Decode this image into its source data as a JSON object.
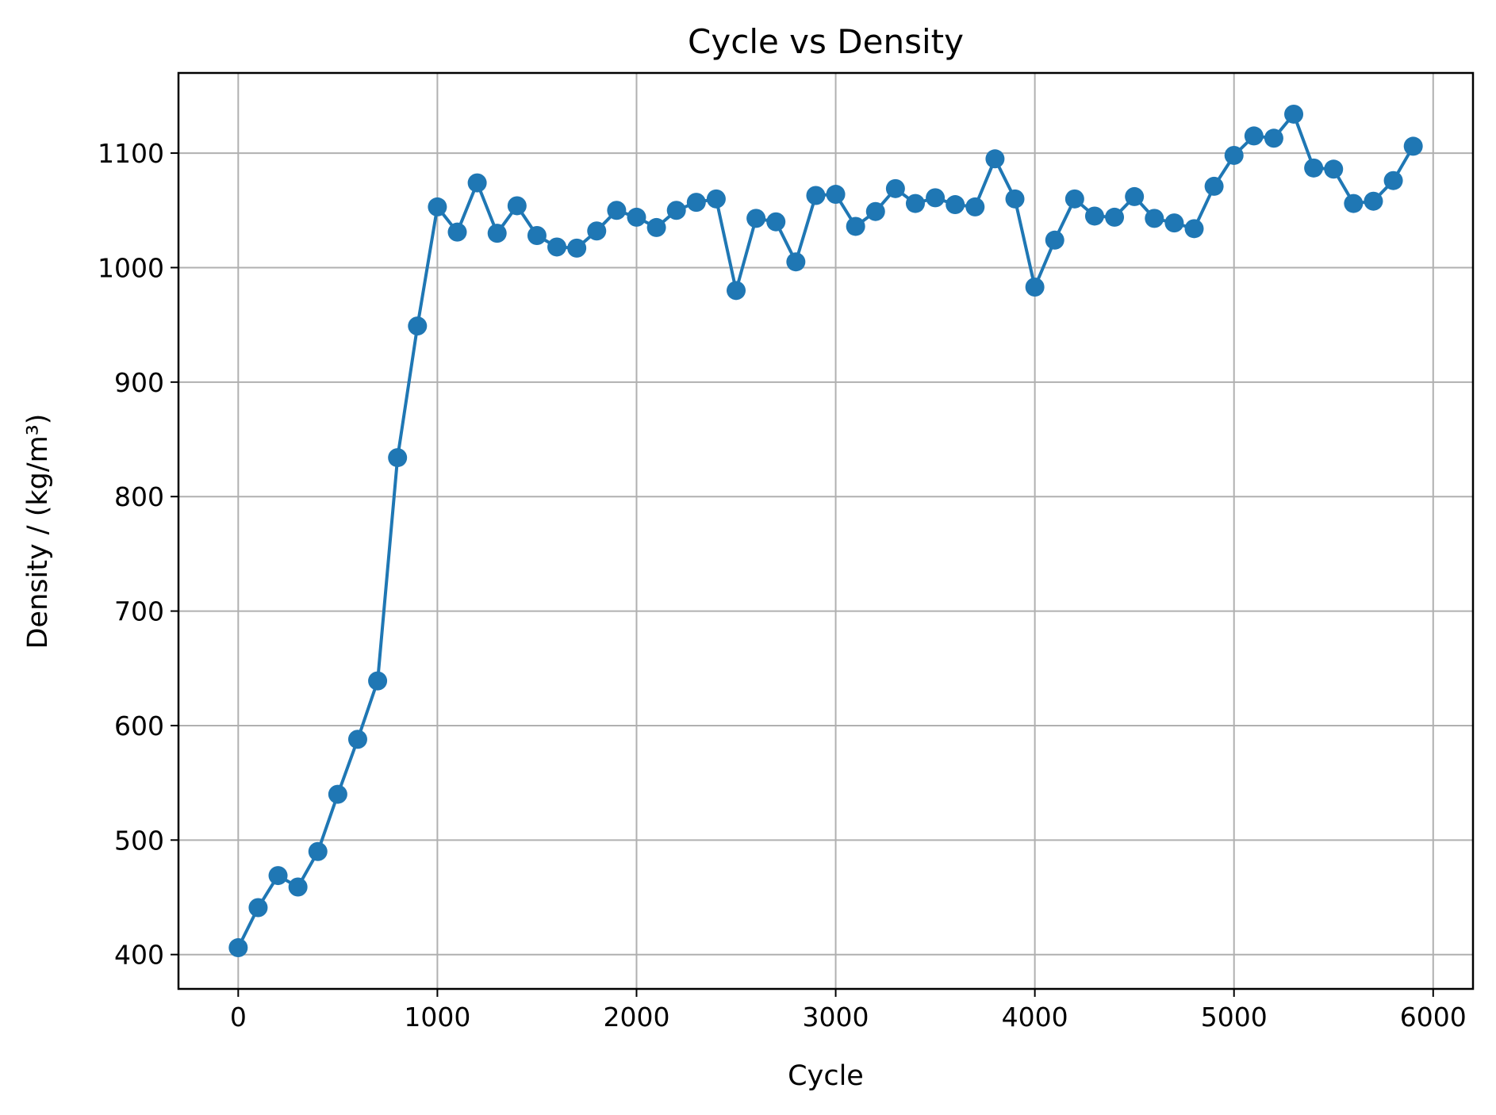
{
  "chart_data": {
    "type": "line",
    "title": "Cycle vs Density",
    "xlabel": "Cycle",
    "ylabel": "Density / (kg/m³)",
    "xlim": [
      -300,
      6200
    ],
    "ylim": [
      370,
      1170
    ],
    "xticks": [
      0,
      1000,
      2000,
      3000,
      4000,
      5000,
      6000
    ],
    "yticks": [
      400,
      500,
      600,
      700,
      800,
      900,
      1000,
      1100
    ],
    "grid": true,
    "markers": true,
    "color": "#1f77b4",
    "series": [
      {
        "x": [
          0,
          100,
          200,
          300,
          400,
          500,
          600,
          700,
          800,
          900,
          1000,
          1100,
          1200,
          1300,
          1400,
          1500,
          1600,
          1700,
          1800,
          1900,
          2000,
          2100,
          2200,
          2300,
          2400,
          2500,
          2600,
          2700,
          2800,
          2900,
          3000,
          3100,
          3200,
          3300,
          3400,
          3500,
          3600,
          3700,
          3800,
          3900,
          4000,
          4100,
          4200,
          4300,
          4400,
          4500,
          4600,
          4700,
          4800,
          4900,
          5000,
          5100,
          5200,
          5300,
          5400,
          5500,
          5600,
          5700,
          5800,
          5900
        ],
        "values": [
          406,
          441,
          469,
          459,
          490,
          540,
          588,
          639,
          834,
          949,
          1053,
          1031,
          1074,
          1030,
          1054,
          1028,
          1018,
          1017,
          1032,
          1050,
          1044,
          1035,
          1050,
          1057,
          1060,
          980,
          1043,
          1040,
          1005,
          1063,
          1064,
          1036,
          1049,
          1069,
          1056,
          1061,
          1055,
          1053,
          1095,
          1060,
          983,
          1024,
          1060,
          1045,
          1044,
          1062,
          1043,
          1039,
          1034,
          1071,
          1098,
          1115,
          1113,
          1134,
          1087,
          1086,
          1056,
          1058,
          1076,
          1106
        ]
      }
    ]
  }
}
